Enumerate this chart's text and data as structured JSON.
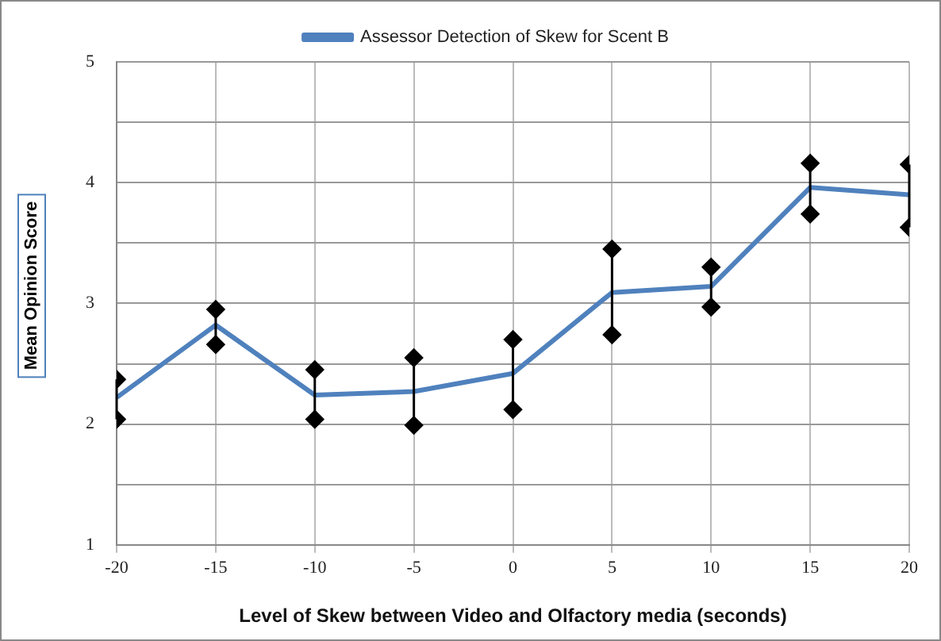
{
  "chart_data": {
    "type": "line",
    "xlabel": "Level of Skew between Video and Olfactory media (seconds)",
    "ylabel": "Mean Opinion Score",
    "x": [
      -20,
      -15,
      -10,
      -5,
      0,
      5,
      10,
      15,
      20
    ],
    "series": [
      {
        "name": "Assessor Detection of Skew for Scent B",
        "color": "#4f81bd",
        "values": [
          2.22,
          2.82,
          2.24,
          2.27,
          2.42,
          3.09,
          3.14,
          3.96,
          3.9
        ],
        "errors": [
          [
            2.04,
            2.37
          ],
          [
            2.66,
            2.95
          ],
          [
            2.04,
            2.45
          ],
          [
            1.99,
            2.55
          ],
          [
            2.12,
            2.7
          ],
          [
            2.74,
            3.45
          ],
          [
            2.97,
            3.3
          ],
          [
            3.74,
            4.16
          ],
          [
            3.63,
            4.15
          ]
        ]
      },
      {
        "type": "scatter",
        "color": "#000000",
        "marker": "diamond",
        "values": [
          2.04,
          2.66,
          2.04,
          1.99,
          2.12,
          2.74,
          2.97,
          3.74,
          3.63
        ]
      },
      {
        "type": "scatter",
        "color": "#000000",
        "marker": "diamond",
        "values": [
          2.37,
          2.95,
          2.45,
          2.55,
          2.7,
          3.45,
          3.3,
          4.16,
          4.15
        ]
      }
    ],
    "xlim": [
      -20,
      20
    ],
    "xticks": [
      -20,
      -15,
      -10,
      -5,
      0,
      5,
      10,
      15,
      20
    ],
    "ylim": [
      1,
      5
    ],
    "yticks": [
      1,
      {
        "value": 1.5,
        "label": null
      },
      2,
      {
        "value": 2.5,
        "label": null
      },
      3,
      {
        "value": 3.5,
        "label": null
      },
      4,
      {
        "value": 4.5,
        "label": null
      },
      5
    ],
    "grid": true,
    "legend": "top",
    "marker": "none",
    "line_style": "solid"
  }
}
